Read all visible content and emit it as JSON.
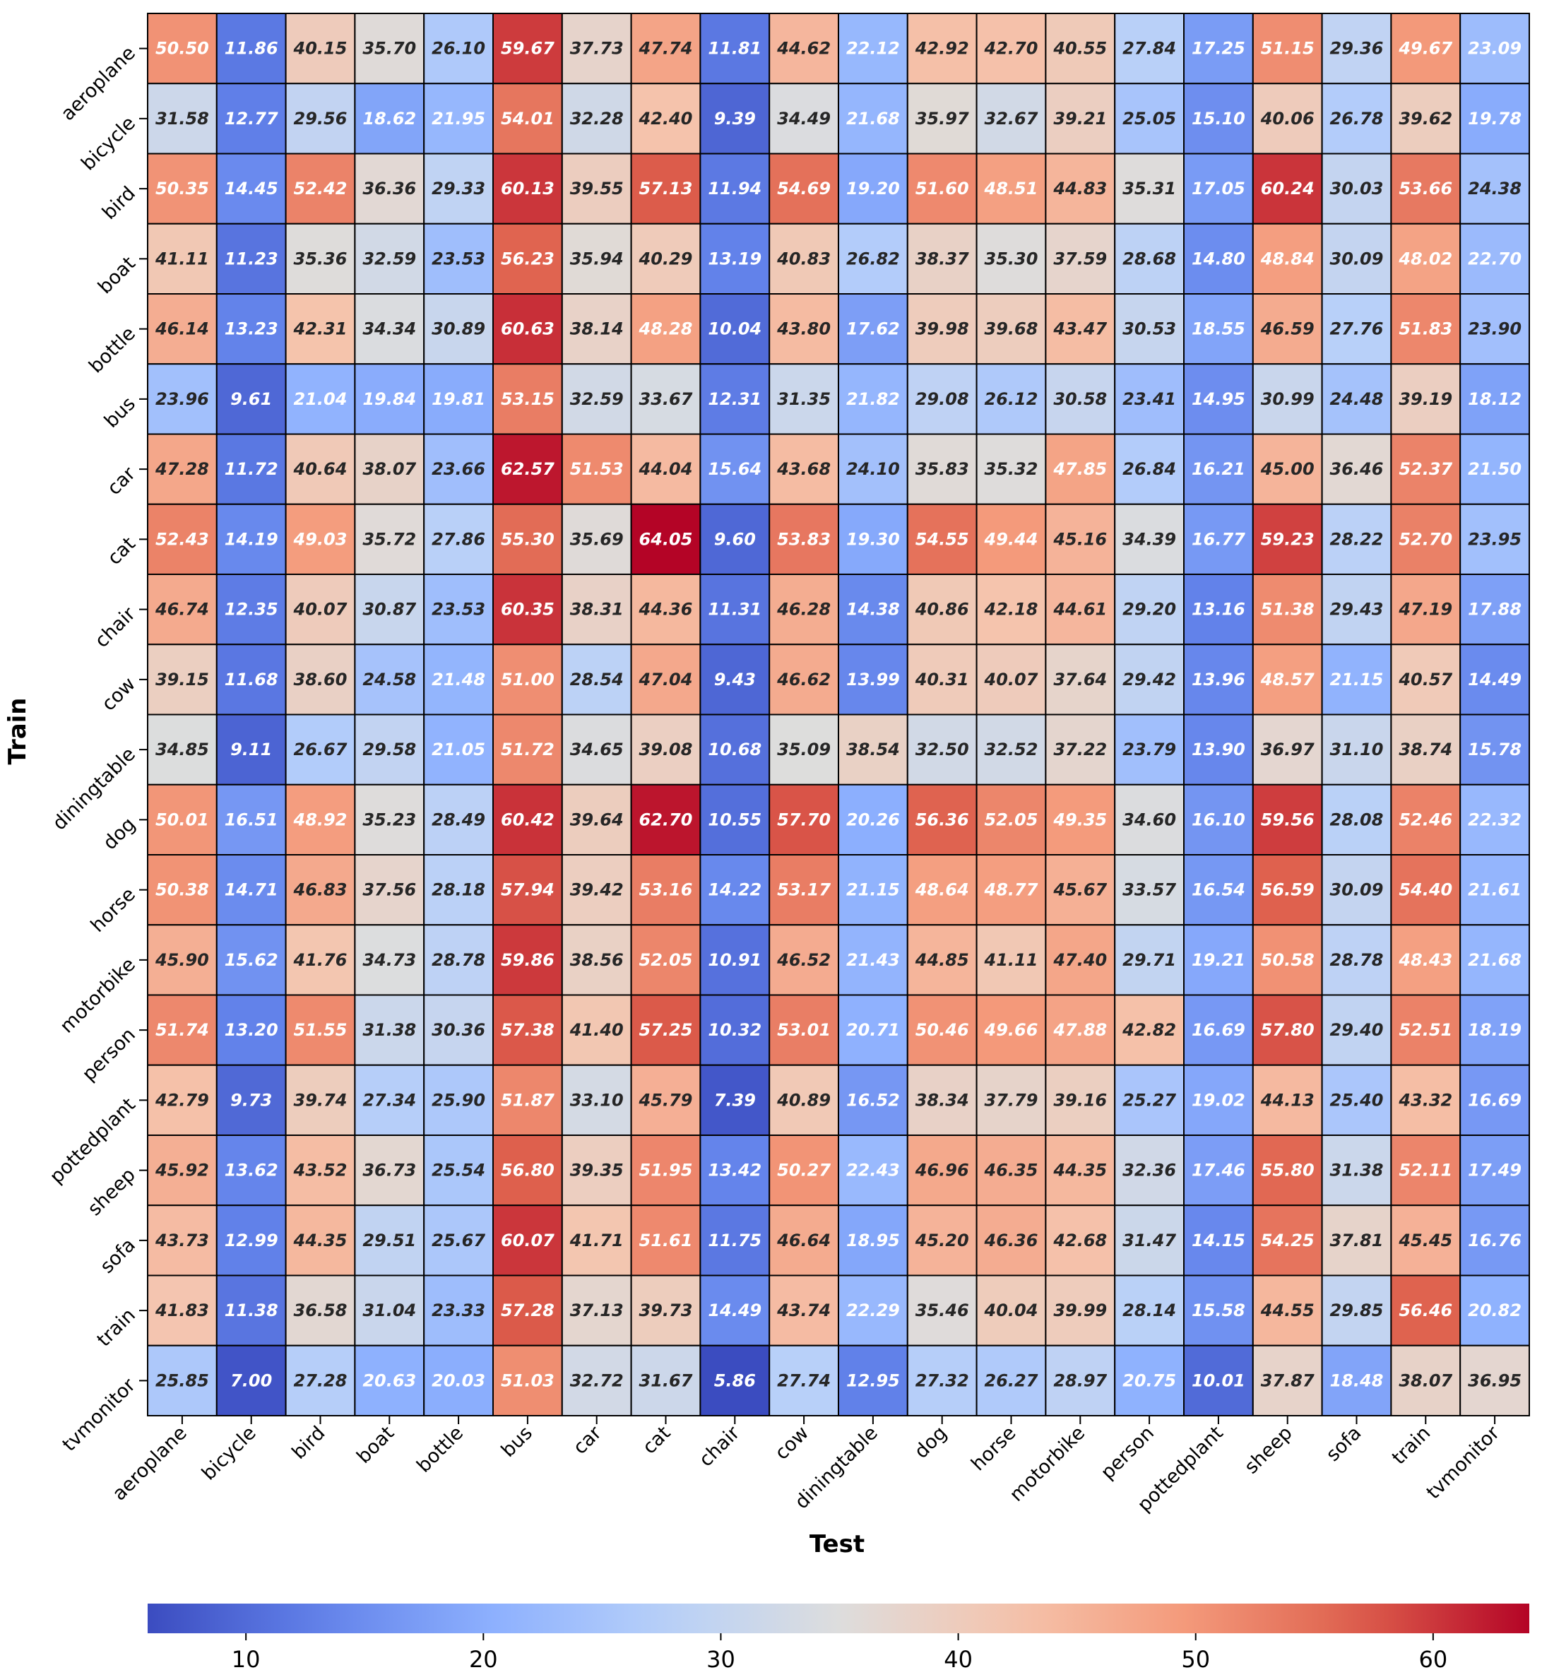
{
  "chart_data": {
    "type": "heatmap",
    "xlabel": "Test",
    "ylabel": "Train",
    "x_categories": [
      "aeroplane",
      "bicycle",
      "bird",
      "boat",
      "bottle",
      "bus",
      "car",
      "cat",
      "chair",
      "cow",
      "diningtable",
      "dog",
      "horse",
      "motorbike",
      "person",
      "pottedplant",
      "sheep",
      "sofa",
      "train",
      "tvmonitor"
    ],
    "y_categories": [
      "aeroplane",
      "bicycle",
      "bird",
      "boat",
      "bottle",
      "bus",
      "car",
      "cat",
      "chair",
      "cow",
      "diningtable",
      "dog",
      "horse",
      "motorbike",
      "person",
      "pottedplant",
      "sheep",
      "sofa",
      "train",
      "tvmonitor"
    ],
    "values": [
      [
        50.5,
        11.86,
        40.15,
        35.7,
        26.1,
        59.67,
        37.73,
        47.74,
        11.81,
        44.62,
        22.12,
        42.92,
        42.7,
        40.55,
        27.84,
        17.25,
        51.15,
        29.36,
        49.67,
        23.09
      ],
      [
        31.58,
        12.77,
        29.56,
        18.62,
        21.95,
        54.01,
        32.28,
        42.4,
        9.39,
        34.49,
        21.68,
        35.97,
        32.67,
        39.21,
        25.05,
        15.1,
        40.06,
        26.78,
        39.62,
        19.78
      ],
      [
        50.35,
        14.45,
        52.42,
        36.36,
        29.33,
        60.13,
        39.55,
        57.13,
        11.94,
        54.69,
        19.2,
        51.6,
        48.51,
        44.83,
        35.31,
        17.05,
        60.24,
        30.03,
        53.66,
        24.38
      ],
      [
        41.11,
        11.23,
        35.36,
        32.59,
        23.53,
        56.23,
        35.94,
        40.29,
        13.19,
        40.83,
        26.82,
        38.37,
        35.3,
        37.59,
        28.68,
        14.8,
        48.84,
        30.09,
        48.02,
        22.7
      ],
      [
        46.14,
        13.23,
        42.31,
        34.34,
        30.89,
        60.63,
        38.14,
        48.28,
        10.04,
        43.8,
        17.62,
        39.98,
        39.68,
        43.47,
        30.53,
        18.55,
        46.59,
        27.76,
        51.83,
        23.9
      ],
      [
        23.96,
        9.61,
        21.04,
        19.84,
        19.81,
        53.15,
        32.59,
        33.67,
        12.31,
        31.35,
        21.82,
        29.08,
        26.12,
        30.58,
        23.41,
        14.95,
        30.99,
        24.48,
        39.19,
        18.12
      ],
      [
        47.28,
        11.72,
        40.64,
        38.07,
        23.66,
        62.57,
        51.53,
        44.04,
        15.64,
        43.68,
        24.1,
        35.83,
        35.32,
        47.85,
        26.84,
        16.21,
        45.0,
        36.46,
        52.37,
        21.5
      ],
      [
        52.43,
        14.19,
        49.03,
        35.72,
        27.86,
        55.3,
        35.69,
        64.05,
        9.6,
        53.83,
        19.3,
        54.55,
        49.44,
        45.16,
        34.39,
        16.77,
        59.23,
        28.22,
        52.7,
        23.95
      ],
      [
        46.74,
        12.35,
        40.07,
        30.87,
        23.53,
        60.35,
        38.31,
        44.36,
        11.31,
        46.28,
        14.38,
        40.86,
        42.18,
        44.61,
        29.2,
        13.16,
        51.38,
        29.43,
        47.19,
        17.88
      ],
      [
        39.15,
        11.68,
        38.6,
        24.58,
        21.48,
        51.0,
        28.54,
        47.04,
        9.43,
        46.62,
        13.99,
        40.31,
        40.07,
        37.64,
        29.42,
        13.96,
        48.57,
        21.15,
        40.57,
        14.49
      ],
      [
        34.85,
        9.11,
        26.67,
        29.58,
        21.05,
        51.72,
        34.65,
        39.08,
        10.68,
        35.09,
        38.54,
        32.5,
        32.52,
        37.22,
        23.79,
        13.9,
        36.97,
        31.1,
        38.74,
        15.78
      ],
      [
        50.01,
        16.51,
        48.92,
        35.23,
        28.49,
        60.42,
        39.64,
        62.7,
        10.55,
        57.7,
        20.26,
        56.36,
        52.05,
        49.35,
        34.6,
        16.1,
        59.56,
        28.08,
        52.46,
        22.32
      ],
      [
        50.38,
        14.71,
        46.83,
        37.56,
        28.18,
        57.94,
        39.42,
        53.16,
        14.22,
        53.17,
        21.15,
        48.64,
        48.77,
        45.67,
        33.57,
        16.54,
        56.59,
        30.09,
        54.4,
        21.61
      ],
      [
        45.9,
        15.62,
        41.76,
        34.73,
        28.78,
        59.86,
        38.56,
        52.05,
        10.91,
        46.52,
        21.43,
        44.85,
        41.11,
        47.4,
        29.71,
        19.21,
        50.58,
        28.78,
        48.43,
        21.68
      ],
      [
        51.74,
        13.2,
        51.55,
        31.38,
        30.36,
        57.38,
        41.4,
        57.25,
        10.32,
        53.01,
        20.71,
        50.46,
        49.66,
        47.88,
        42.82,
        16.69,
        57.8,
        29.4,
        52.51,
        18.19
      ],
      [
        42.79,
        9.73,
        39.74,
        27.34,
        25.9,
        51.87,
        33.1,
        45.79,
        7.39,
        40.89,
        16.52,
        38.34,
        37.79,
        39.16,
        25.27,
        19.02,
        44.13,
        25.4,
        43.32,
        16.69
      ],
      [
        45.92,
        13.62,
        43.52,
        36.73,
        25.54,
        56.8,
        39.35,
        51.95,
        13.42,
        50.27,
        22.43,
        46.96,
        46.35,
        44.35,
        32.36,
        17.46,
        55.8,
        31.38,
        52.11,
        17.49
      ],
      [
        43.73,
        12.99,
        44.35,
        29.51,
        25.67,
        60.07,
        41.71,
        51.61,
        11.75,
        46.64,
        18.95,
        45.2,
        46.36,
        42.68,
        31.47,
        14.15,
        54.25,
        37.81,
        45.45,
        16.76
      ],
      [
        41.83,
        11.38,
        36.58,
        31.04,
        23.33,
        57.28,
        37.13,
        39.73,
        14.49,
        43.74,
        22.29,
        35.46,
        40.04,
        39.99,
        28.14,
        15.58,
        44.55,
        29.85,
        56.46,
        20.82
      ],
      [
        25.85,
        7.0,
        27.28,
        20.63,
        20.03,
        51.03,
        32.72,
        31.67,
        5.86,
        27.74,
        12.95,
        27.32,
        26.27,
        28.97,
        20.75,
        10.01,
        37.87,
        18.48,
        38.07,
        36.95
      ]
    ],
    "value_format": "2 decimals",
    "colormap": "coolwarm",
    "vmin": 5.86,
    "vmax": 64.05,
    "colorbar": {
      "orientation": "horizontal",
      "location": "bottom",
      "ticks": [
        10,
        20,
        30,
        40,
        50,
        60
      ]
    },
    "cell_border_color": "#000000",
    "light_text_color": "#ffffff",
    "dark_text_color": "#262626"
  }
}
